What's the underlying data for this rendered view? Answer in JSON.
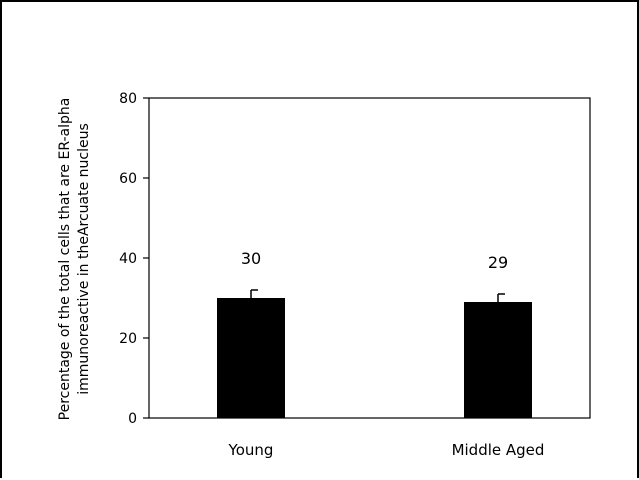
{
  "chart_data": {
    "type": "bar",
    "categories": [
      "Young",
      "Middle Aged"
    ],
    "values": [
      30,
      29
    ],
    "errors": [
      2,
      2
    ],
    "data_labels": [
      "30",
      "29"
    ],
    "title": "",
    "xlabel": "",
    "ylabel_lines": [
      "Percentage of the total cells that are ER-alpha",
      "immunoreactive in theArcuate nucleus"
    ],
    "ylim": [
      0,
      80
    ],
    "yticks": [
      0,
      20,
      40,
      60,
      80
    ],
    "grid": false,
    "legend": "none",
    "bar_color": "#000000"
  }
}
